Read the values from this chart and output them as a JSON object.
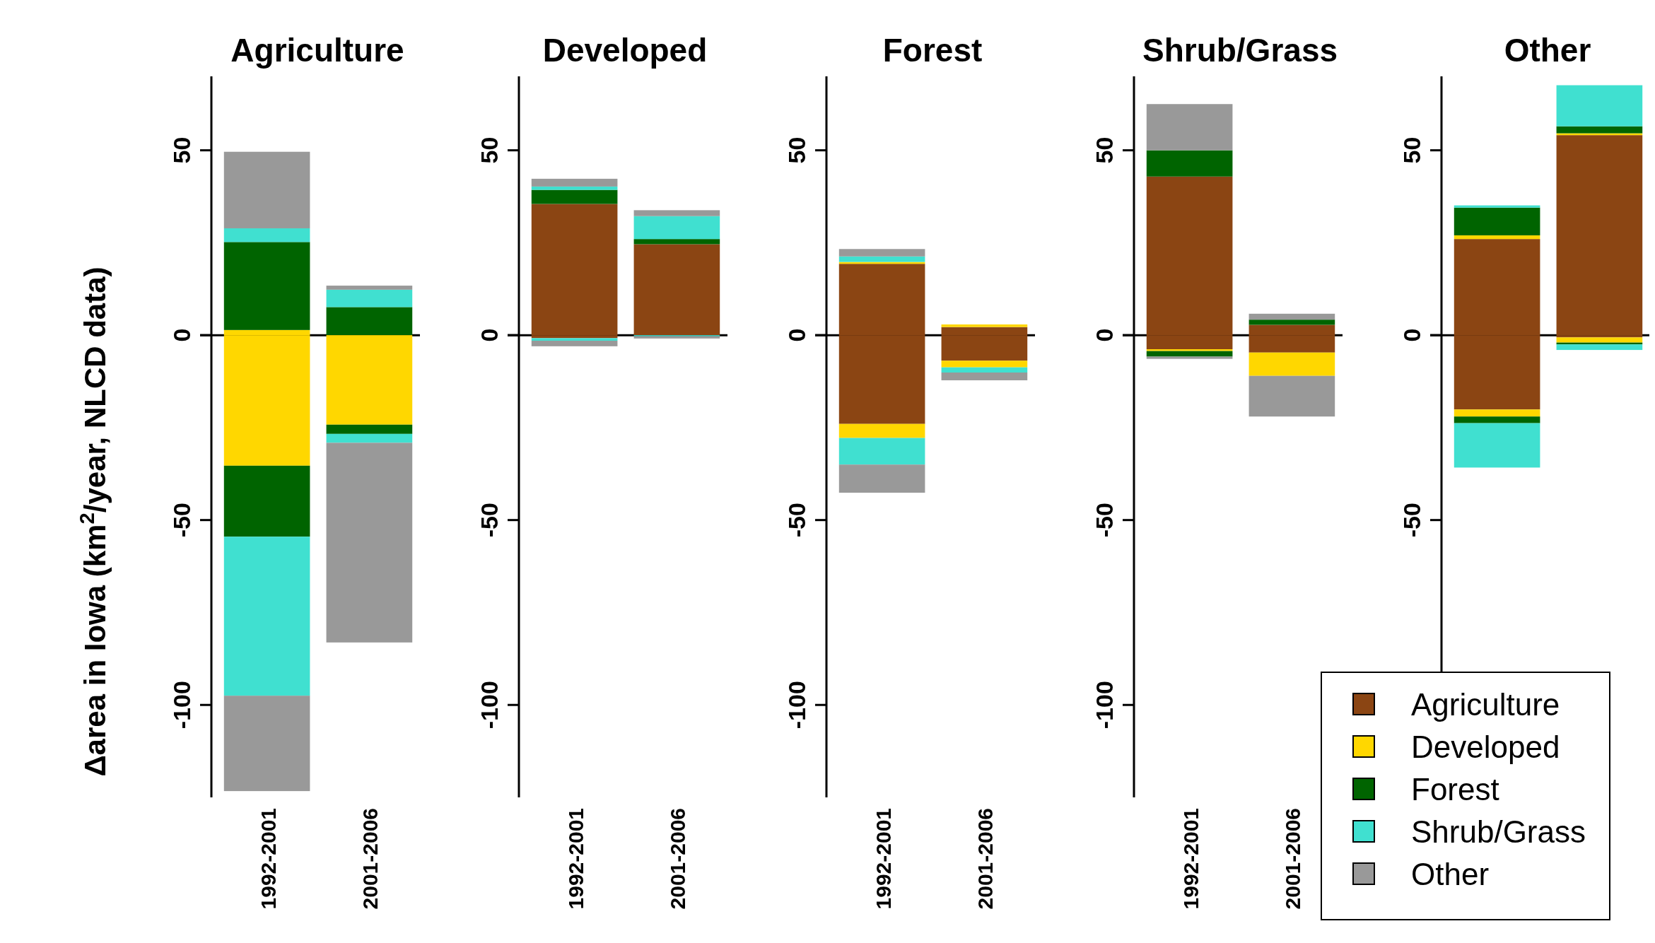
{
  "chart_data": [
    {
      "type": "bar",
      "stacked": true,
      "title": "Agriculture",
      "ylabel": "Δarea in Iowa (km$^{2}$/year,  NLCD data)",
      "categories": [
        "1992-2001",
        "2001-2006"
      ],
      "ylim": [
        -125,
        70
      ],
      "yticks": [
        -100,
        -50,
        0,
        50
      ],
      "ref_lines": [
        {
          "axis": "y",
          "value": 0,
          "color": "#000000"
        }
      ],
      "series": [
        {
          "color": "#ffd700",
          "values": [
            1.4,
            null
          ]
        },
        {
          "color": "#006400",
          "values": [
            23.8,
            7.6
          ]
        },
        {
          "color": "#40e0d0",
          "values": [
            3.7,
            4.7
          ]
        },
        {
          "color": "#999999",
          "values": [
            20.7,
            1.1
          ]
        },
        {
          "color": "#ffd700",
          "values": [
            -35.3,
            -24.2
          ]
        },
        {
          "color": "#006400",
          "values": [
            -19.2,
            -2.5
          ]
        },
        {
          "color": "#40e0d0",
          "values": [
            -43.0,
            -2.4
          ]
        },
        {
          "color": "#999999",
          "values": [
            -25.8,
            -54.0
          ]
        }
      ]
    },
    {
      "type": "bar",
      "stacked": true,
      "title": "Developed",
      "categories": [
        "1992-2001",
        "2001-2006"
      ],
      "ylim": [
        -125,
        70
      ],
      "yticks": [
        -100,
        -50,
        0,
        50
      ],
      "ref_lines": [
        {
          "axis": "y",
          "value": 0,
          "color": "#000000"
        }
      ],
      "series": [
        {
          "color": "#8b4513",
          "values": [
            35.5,
            24.6
          ]
        },
        {
          "color": "#006400",
          "values": [
            3.8,
            1.4
          ]
        },
        {
          "color": "#40e0d0",
          "values": [
            0.9,
            6.2
          ]
        },
        {
          "color": "#999999",
          "values": [
            2.1,
            1.6
          ]
        },
        {
          "color": "#8b4513",
          "values": [
            -0.8,
            null
          ]
        },
        {
          "color": "#40e0d0",
          "values": [
            -0.7,
            -0.3
          ]
        },
        {
          "color": "#999999",
          "values": [
            -1.5,
            -0.6
          ]
        }
      ]
    },
    {
      "type": "bar",
      "stacked": true,
      "title": "Forest",
      "categories": [
        "1992-2001",
        "2001-2006"
      ],
      "ylim": [
        -125,
        70
      ],
      "yticks": [
        -100,
        -50,
        0,
        50
      ],
      "ref_lines": [
        {
          "axis": "y",
          "value": 0,
          "color": "#000000"
        }
      ],
      "series": [
        {
          "color": "#8b4513",
          "values": [
            19.3,
            2.2
          ]
        },
        {
          "color": "#ffd700",
          "values": [
            0.5,
            0.7
          ]
        },
        {
          "color": "#40e0d0",
          "values": [
            1.5,
            null
          ]
        },
        {
          "color": "#999999",
          "values": [
            2.0,
            null
          ]
        },
        {
          "color": "#8b4513",
          "values": [
            -24.0,
            -6.9
          ]
        },
        {
          "color": "#ffd700",
          "values": [
            -3.8,
            -1.8
          ]
        },
        {
          "color": "#40e0d0",
          "values": [
            -7.2,
            -1.4
          ]
        },
        {
          "color": "#999999",
          "values": [
            -7.6,
            -2.1
          ]
        }
      ]
    },
    {
      "type": "bar",
      "stacked": true,
      "title": "Shrub/Grass",
      "categories": [
        "1992-2001",
        "2001-2006"
      ],
      "ylim": [
        -125,
        70
      ],
      "yticks": [
        -100,
        -50,
        0,
        50
      ],
      "ref_lines": [
        {
          "axis": "y",
          "value": 0,
          "color": "#000000"
        }
      ],
      "series": [
        {
          "color": "#8b4513",
          "values": [
            42.9,
            2.8
          ]
        },
        {
          "color": "#006400",
          "values": [
            7.1,
            1.4
          ]
        },
        {
          "color": "#999999",
          "values": [
            12.5,
            1.6
          ]
        },
        {
          "color": "#8b4513",
          "values": [
            -3.8,
            -4.7
          ]
        },
        {
          "color": "#ffd700",
          "values": [
            -0.5,
            -6.3
          ]
        },
        {
          "color": "#006400",
          "values": [
            -1.5,
            null
          ]
        },
        {
          "color": "#999999",
          "values": [
            -0.6,
            -11.0
          ]
        }
      ]
    },
    {
      "type": "bar",
      "stacked": true,
      "title": "Other",
      "categories": [
        null,
        null
      ],
      "ylim": [
        -125,
        70
      ],
      "yticks": [
        -50,
        0,
        50
      ],
      "legend": "bottom left",
      "ref_lines": [
        {
          "axis": "y",
          "value": 0,
          "color": "#000000"
        }
      ],
      "series": [
        {
          "name": "Agriculture",
          "color": "#8b4513",
          "values": [
            26.0,
            54.1
          ]
        },
        {
          "name": "Developed",
          "color": "#ffd700",
          "values": [
            1.0,
            0.5
          ]
        },
        {
          "name": "Forest",
          "color": "#006400",
          "values": [
            7.5,
            1.9
          ]
        },
        {
          "name": "Shrub/Grass",
          "color": "#40e0d0",
          "values": [
            0.6,
            11.1
          ]
        },
        {
          "name": "Other",
          "color": "#999999",
          "values": [
            null,
            null
          ]
        },
        {
          "color": "#8b4513",
          "values": [
            -20.1,
            -0.6
          ]
        },
        {
          "color": "#ffd700",
          "values": [
            -1.9,
            -1.4
          ]
        },
        {
          "color": "#006400",
          "values": [
            -1.8,
            -0.5
          ]
        },
        {
          "color": "#40e0d0",
          "values": [
            -12.0,
            -1.5
          ]
        }
      ]
    }
  ]
}
